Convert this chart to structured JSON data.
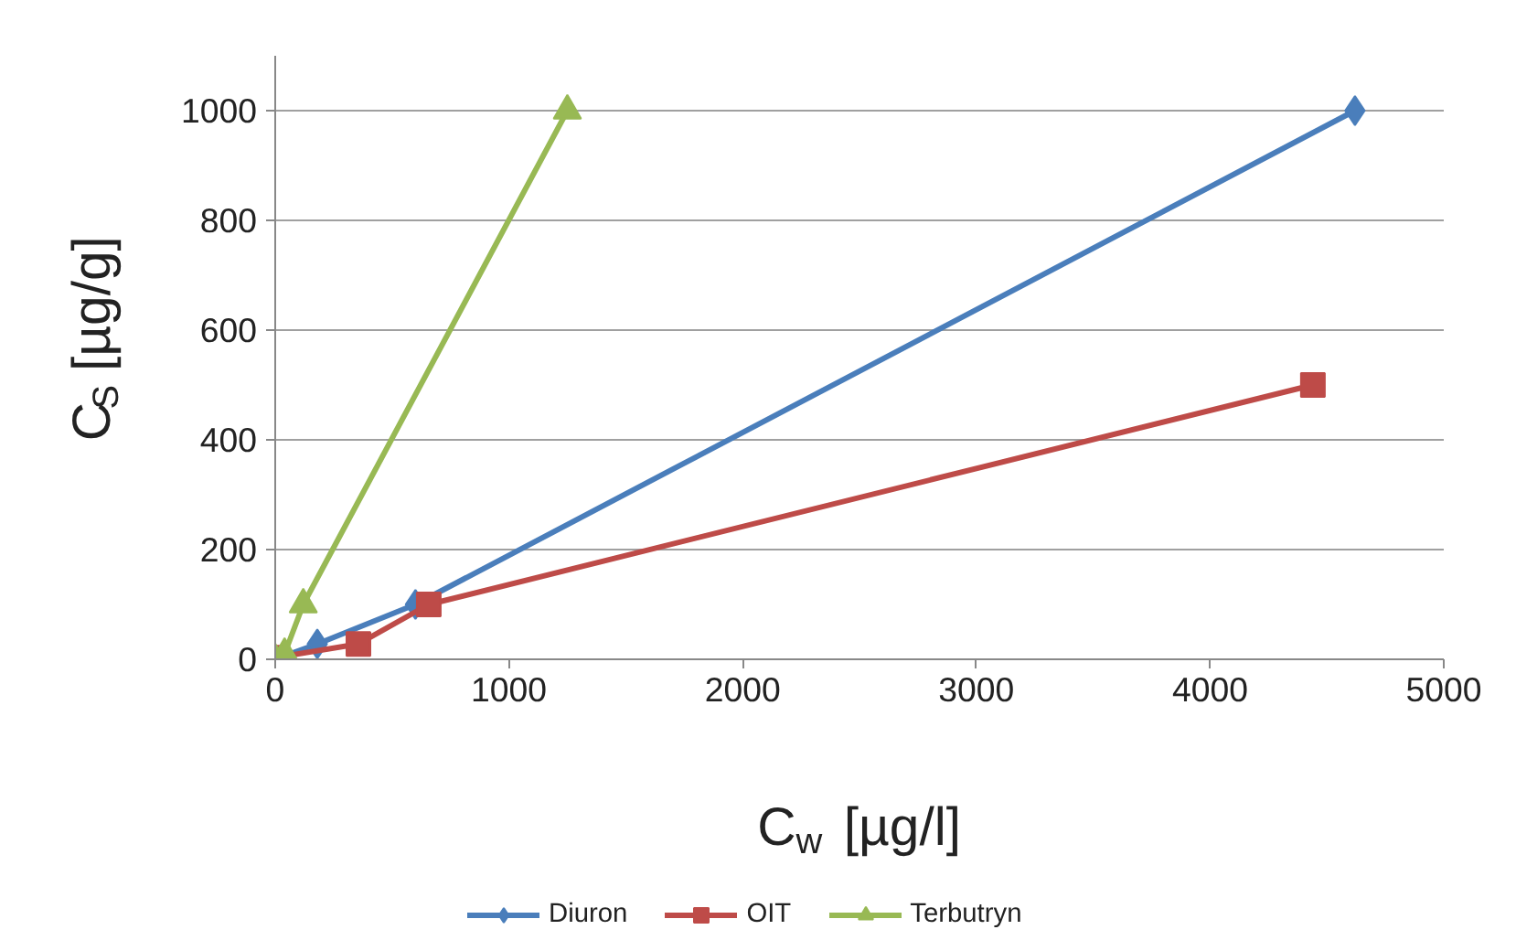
{
  "chart_data": {
    "type": "line",
    "xlabel": "C$_{w}$ [µg/l]",
    "ylabel": "C$_{S}$ [µg/g]",
    "xlim": [
      0,
      5000
    ],
    "xticks": [
      0,
      1000,
      2000,
      3000,
      4000,
      5000
    ],
    "ylim": [
      0,
      1100
    ],
    "yticks": [
      0,
      200,
      400,
      600,
      800,
      1000
    ],
    "grid": "y",
    "legend": "bottom",
    "line_style": "solid",
    "series": [
      {
        "name": "Diuron",
        "color": "#4a7ebb",
        "marker": "diamond",
        "x": [
          0,
          180,
          600,
          4620
        ],
        "values": [
          0,
          28,
          100,
          1000
        ]
      },
      {
        "name": "OIT",
        "color": "#be4b48",
        "marker": "square",
        "x": [
          0,
          356,
          657,
          4440
        ],
        "values": [
          3,
          28,
          100,
          500
        ]
      },
      {
        "name": "Terbutryn",
        "color": "#98b954",
        "marker": "triangle",
        "x": [
          0,
          40,
          120,
          1250
        ],
        "values": [
          0,
          10,
          100,
          1000
        ]
      }
    ]
  }
}
